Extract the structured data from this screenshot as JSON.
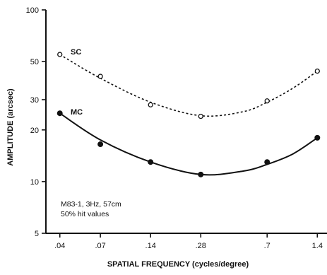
{
  "chart_data": {
    "type": "line",
    "title": "",
    "xlabel": "SPATIAL FREQUENCY (cycles/degree)",
    "ylabel": "AMPLITUDE (arcsec)",
    "x_scale": "log",
    "y_scale": "log",
    "xlim": [
      0.033,
      1.6
    ],
    "ylim": [
      5,
      100
    ],
    "x_ticks": [
      {
        "value": 0.04,
        "label": ".04"
      },
      {
        "value": 0.07,
        "label": ".07"
      },
      {
        "value": 0.14,
        "label": ".14"
      },
      {
        "value": 0.28,
        "label": ".28"
      },
      {
        "value": 0.7,
        "label": ".7"
      },
      {
        "value": 1.4,
        "label": "1.4"
      }
    ],
    "y_ticks": [
      {
        "value": 5,
        "label": "5"
      },
      {
        "value": 10,
        "label": "10"
      },
      {
        "value": 20,
        "label": "20"
      },
      {
        "value": 30,
        "label": "30"
      },
      {
        "value": 50,
        "label": "50"
      },
      {
        "value": 100,
        "label": "100"
      }
    ],
    "grid": false,
    "annotations": [
      "M83-1, 3Hz, 57cm",
      "50% hit values"
    ],
    "series": [
      {
        "name": "SC",
        "marker": "open-circle",
        "line_style": "dotted",
        "x": [
          0.04,
          0.07,
          0.14,
          0.28,
          0.7,
          1.4
        ],
        "y": [
          55,
          41,
          28,
          24,
          29.5,
          44
        ],
        "fit": [
          [
            0.04,
            55
          ],
          [
            0.07,
            40
          ],
          [
            0.14,
            29
          ],
          [
            0.28,
            24.2
          ],
          [
            0.5,
            25.5
          ],
          [
            0.7,
            29
          ],
          [
            1.0,
            35
          ],
          [
            1.4,
            44
          ]
        ]
      },
      {
        "name": "MC",
        "marker": "filled-circle",
        "line_style": "solid",
        "x": [
          0.04,
          0.07,
          0.14,
          0.28,
          0.7,
          1.4
        ],
        "y": [
          25,
          16.5,
          13,
          11,
          13,
          18
        ],
        "fit": [
          [
            0.04,
            25
          ],
          [
            0.07,
            17.5
          ],
          [
            0.14,
            13
          ],
          [
            0.28,
            11
          ],
          [
            0.5,
            11.5
          ],
          [
            0.7,
            12.6
          ],
          [
            1.0,
            14.5
          ],
          [
            1.4,
            18
          ]
        ]
      }
    ]
  }
}
